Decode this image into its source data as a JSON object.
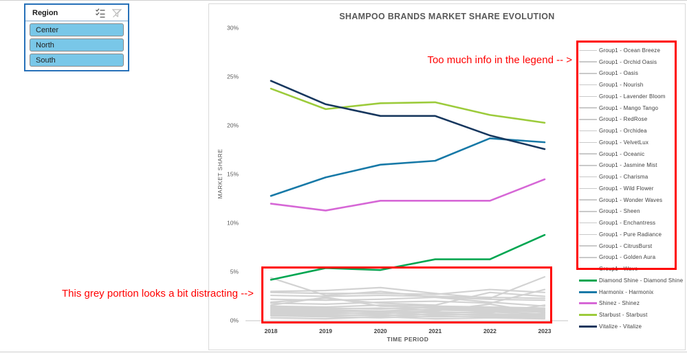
{
  "page": {
    "slicer": {
      "title": "Region",
      "options": [
        "Center",
        "North",
        "South"
      ]
    },
    "annotations": {
      "legend_note": "Too much info in the legend -- >",
      "grey_note": "This grey portion looks a bit distracting -->"
    },
    "colors": {
      "annotation_red": "#FF0000",
      "slicer_button_fill": "#79C7E8",
      "slicer_border": "#2670B8",
      "grey_line": "#D2D2D2",
      "axis_text": "#595959"
    }
  },
  "chart_data": {
    "type": "line",
    "title": "SHAMPOO BRANDS MARKET SHARE EVOLUTION",
    "xlabel": "TIME PERIOD",
    "ylabel": "MARKET SHARE",
    "x": [
      2018,
      2019,
      2020,
      2021,
      2022,
      2023
    ],
    "ylim": [
      0,
      30
    ],
    "ytick_step": 5,
    "ytick_suffix": "%",
    "grid": false,
    "legend_position": "right",
    "series": [
      {
        "name": "Diamond Shine",
        "legend": "Diamond Shine - Diamond Shine",
        "color": "#00A651",
        "values": [
          4.2,
          5.4,
          5.2,
          6.3,
          6.3,
          8.8
        ]
      },
      {
        "name": "Harmonix",
        "legend": "Harmonix - Harmonix",
        "color": "#1779A7",
        "values": [
          12.8,
          14.7,
          16.0,
          16.4,
          18.7,
          18.3
        ]
      },
      {
        "name": "Shinez",
        "legend": "Shinez - Shinez",
        "color": "#D667D6",
        "values": [
          12.0,
          11.3,
          12.3,
          12.3,
          12.3,
          14.5
        ]
      },
      {
        "name": "Starbust",
        "legend": "Starbust - Starbust",
        "color": "#9CCB3B",
        "values": [
          23.8,
          21.7,
          22.3,
          22.4,
          21.1,
          20.3
        ]
      },
      {
        "name": "Vitalize",
        "legend": "Vitalize - Vitalize",
        "color": "#17375E",
        "values": [
          24.6,
          22.2,
          21.0,
          21.0,
          19.0,
          17.6
        ]
      }
    ],
    "grey_series": [
      {
        "name": "Ocean Breeze",
        "legend": "Group1 - Ocean Breeze",
        "values": [
          4.4,
          2.6,
          3.0,
          2.4,
          1.9,
          1.5
        ]
      },
      {
        "name": "Orchid Oasis",
        "legend": "Group1 - Orchid Oasis",
        "values": [
          3.0,
          3.1,
          3.4,
          2.8,
          2.3,
          4.5
        ]
      },
      {
        "name": "Oasis",
        "legend": "Group1 - Oasis",
        "values": [
          2.9,
          2.8,
          2.8,
          2.7,
          3.2,
          2.9
        ]
      },
      {
        "name": "Nourish",
        "legend": "Group1 - Nourish",
        "values": [
          2.6,
          2.5,
          2.6,
          2.5,
          2.4,
          2.3
        ]
      },
      {
        "name": "Lavender Bloom",
        "legend": "Group1 - Lavender Bloom",
        "values": [
          2.2,
          2.1,
          2.2,
          2.4,
          2.2,
          2.1
        ]
      },
      {
        "name": "Mango Tango",
        "legend": "Group1 - Mango Tango",
        "values": [
          1.9,
          2.3,
          1.8,
          1.6,
          2.9,
          2.5
        ]
      },
      {
        "name": "RedRose",
        "legend": "Group1 - RedRose",
        "values": [
          1.8,
          1.7,
          1.9,
          2.0,
          1.8,
          3.2
        ]
      },
      {
        "name": "Orchidea",
        "legend": "Group1 - Orchidea",
        "values": [
          1.6,
          2.4,
          1.5,
          1.3,
          1.2,
          1.1
        ]
      },
      {
        "name": "VelvetLux",
        "legend": "Group1 - VelvetLux",
        "values": [
          1.5,
          1.4,
          1.6,
          1.5,
          1.4,
          1.3
        ]
      },
      {
        "name": "Oceanic",
        "legend": "Group1 - Oceanic",
        "values": [
          1.4,
          1.3,
          1.2,
          1.4,
          1.3,
          1.2
        ]
      },
      {
        "name": "Jasmine Mist",
        "legend": "Group1 - Jasmine Mist",
        "values": [
          1.3,
          1.2,
          1.3,
          1.1,
          1.0,
          0.9
        ]
      },
      {
        "name": "Charisma",
        "legend": "Group1 - Charisma",
        "values": [
          1.2,
          1.1,
          1.0,
          1.2,
          1.1,
          1.0
        ]
      },
      {
        "name": "Wild Flower",
        "legend": "Group1 - Wild Flower",
        "values": [
          1.1,
          1.0,
          0.9,
          1.0,
          1.7,
          0.8
        ]
      },
      {
        "name": "Wonder Waves",
        "legend": "Group1 - Wonder Waves",
        "values": [
          1.0,
          0.9,
          1.0,
          0.8,
          0.9,
          0.7
        ]
      },
      {
        "name": "Sheen",
        "legend": "Group1 - Sheen",
        "values": [
          0.9,
          0.8,
          0.7,
          0.9,
          0.8,
          1.6
        ]
      },
      {
        "name": "Enchantress",
        "legend": "Group1 - Enchantress",
        "values": [
          0.8,
          0.7,
          0.8,
          0.6,
          0.7,
          0.6
        ]
      },
      {
        "name": "Pure Radiance",
        "legend": "Group1 - Pure Radiance",
        "values": [
          0.7,
          0.6,
          0.5,
          0.7,
          0.6,
          0.5
        ]
      },
      {
        "name": "CitrusBurst",
        "legend": "Group1 - CitrusBurst",
        "values": [
          0.6,
          0.5,
          0.6,
          0.4,
          0.5,
          0.4
        ]
      },
      {
        "name": "Golden Aura",
        "legend": "Group1 - Golden Aura",
        "values": [
          0.5,
          0.4,
          0.3,
          0.5,
          0.4,
          0.3
        ]
      },
      {
        "name": "Wave",
        "legend": "Group1 - Wave",
        "values": [
          0.3,
          0.2,
          0.4,
          0.2,
          0.3,
          0.2
        ]
      }
    ],
    "grey_color": "#D2D2D2"
  }
}
